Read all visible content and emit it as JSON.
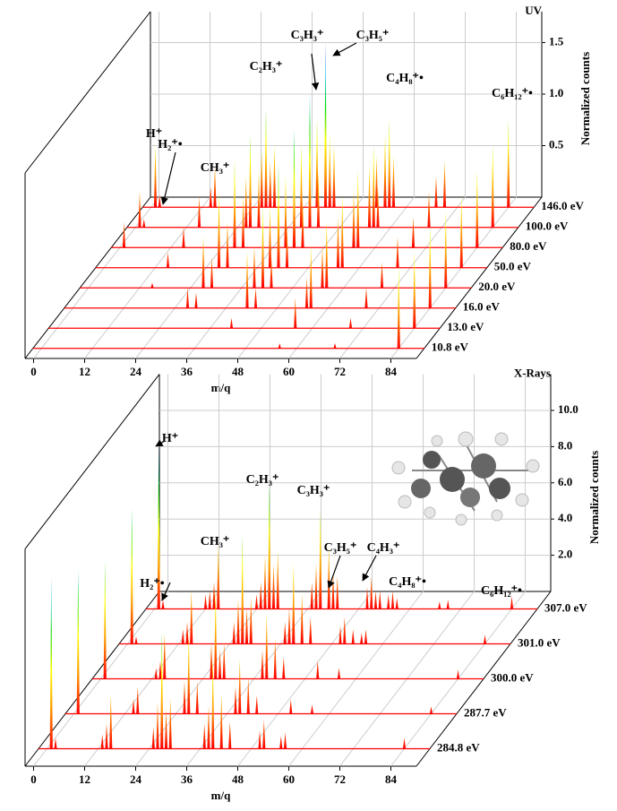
{
  "chart_data": [
    {
      "type": "waterfall",
      "title": "UV",
      "xlabel": "m/q",
      "zlabel": "Normalized counts",
      "xlim": [
        -2,
        90
      ],
      "xticks": [
        0,
        12,
        24,
        36,
        48,
        60,
        72,
        84
      ],
      "zlim": [
        0,
        1.8
      ],
      "zticks": [
        0.5,
        {
          "value": 1,
          "label": "1.0"
        },
        1.5
      ],
      "grid": true,
      "line_color": "#ff0000",
      "colormap": [
        "#ff0000",
        "#ff9900",
        "#ffff00",
        "#00dd00",
        "#00bfff",
        "#0000ff"
      ],
      "series": [
        {
          "name": "146.0 eV",
          "x": [
            1,
            2,
            14,
            15,
            26,
            27,
            28,
            29,
            39,
            41,
            42,
            43,
            53,
            55,
            56,
            57,
            67,
            69,
            84
          ],
          "values": [
            0.6,
            0.12,
            0.2,
            0.4,
            0.55,
            0.95,
            0.45,
            0.6,
            0.85,
            1.6,
            0.7,
            0.6,
            0.5,
            0.7,
            0.85,
            0.5,
            0.3,
            0.45,
            0.85
          ]
        },
        {
          "name": "100.0 eV",
          "x": [
            1,
            2,
            15,
            26,
            27,
            29,
            39,
            41,
            43,
            55,
            56,
            57,
            69,
            84
          ],
          "values": [
            0.35,
            0.08,
            0.3,
            0.5,
            0.9,
            0.55,
            0.8,
            1.3,
            0.55,
            0.6,
            0.8,
            0.4,
            0.35,
            0.8
          ]
        },
        {
          "name": "80.0 eV",
          "x": [
            1,
            15,
            27,
            29,
            39,
            41,
            43,
            55,
            56,
            69,
            84
          ],
          "values": [
            0.25,
            0.2,
            0.85,
            0.5,
            0.7,
            1.15,
            0.45,
            0.55,
            0.75,
            0.3,
            0.75
          ]
        },
        {
          "name": "50.0 eV",
          "x": [
            15,
            27,
            29,
            39,
            41,
            43,
            55,
            56,
            69,
            84
          ],
          "values": [
            0.15,
            0.75,
            0.45,
            0.6,
            1.0,
            0.4,
            0.5,
            0.7,
            0.3,
            0.7
          ]
        },
        {
          "name": "20.0 eV",
          "x": [
            15,
            27,
            29,
            39,
            41,
            43,
            55,
            56,
            69,
            84
          ],
          "values": [
            0.05,
            0.5,
            0.3,
            0.4,
            0.8,
            0.3,
            0.4,
            0.65,
            0.25,
            0.75
          ]
        },
        {
          "name": "16.0 eV",
          "x": [
            27,
            29,
            41,
            43,
            55,
            56,
            69,
            84
          ],
          "values": [
            0.2,
            0.15,
            0.55,
            0.2,
            0.3,
            0.6,
            0.2,
            0.8
          ]
        },
        {
          "name": "13.0 eV",
          "x": [
            41,
            56,
            69,
            84
          ],
          "values": [
            0.1,
            0.3,
            0.1,
            0.75
          ]
        },
        {
          "name": "10.8 eV",
          "x": [
            56,
            69,
            84
          ],
          "values": [
            0.05,
            0.05,
            0.8
          ]
        }
      ],
      "annotations": [
        "H⁺",
        "H₂⁺•",
        "CH₃⁺",
        "C₂H₃⁺",
        "C₃H₃⁺",
        "C₃H₅⁺",
        "C₄H₈⁺•",
        "C₆H₁₂⁺•"
      ]
    },
    {
      "type": "waterfall",
      "title": "X-Rays",
      "xlabel": "m/q",
      "zlabel": "Normalized counts",
      "xlim": [
        -2,
        90
      ],
      "xticks": [
        0,
        12,
        24,
        36,
        48,
        60,
        72,
        84
      ],
      "zlim": [
        0,
        12
      ],
      "zticks": [
        {
          "value": 2,
          "label": "2.0"
        },
        {
          "value": 4,
          "label": "4.0"
        },
        {
          "value": 6,
          "label": "6.0"
        },
        {
          "value": 8,
          "label": "8.0"
        },
        {
          "value": 10,
          "label": "10.0"
        }
      ],
      "grid": true,
      "line_color": "#ff0000",
      "colormap": [
        "#ff0000",
        "#ff9900",
        "#ffff00",
        "#00dd00",
        "#00bfff",
        "#0000ff"
      ],
      "series": [
        {
          "name": "307.0 eV",
          "x": [
            1,
            2,
            12,
            13,
            14,
            15,
            24,
            25,
            26,
            27,
            28,
            29,
            37,
            38,
            39,
            41,
            42,
            43,
            50,
            51,
            52,
            53,
            55,
            56,
            57,
            67,
            69,
            84
          ],
          "values": [
            9.0,
            0.5,
            0.8,
            1.0,
            1.5,
            3.6,
            0.8,
            1.5,
            3.0,
            7.0,
            2.5,
            3.2,
            1.5,
            2.5,
            5.5,
            3.5,
            2.0,
            1.8,
            1.2,
            1.8,
            1.0,
            1.0,
            0.8,
            1.0,
            0.6,
            0.4,
            0.5,
            0.7
          ]
        },
        {
          "name": "301.0 eV",
          "x": [
            1,
            2,
            13,
            14,
            15,
            25,
            26,
            27,
            28,
            29,
            37,
            38,
            39,
            41,
            43,
            50,
            51,
            53,
            55,
            56,
            84
          ],
          "values": [
            7.5,
            0.4,
            0.8,
            1.2,
            3.0,
            1.2,
            2.5,
            6.0,
            2.0,
            2.6,
            1.2,
            2.0,
            4.5,
            2.8,
            1.5,
            1.0,
            1.5,
            0.8,
            0.6,
            0.8,
            0.5
          ]
        },
        {
          "name": "300.0 eV",
          "x": [
            1,
            13,
            14,
            15,
            26,
            27,
            28,
            29,
            38,
            39,
            41,
            43,
            51,
            56,
            84
          ],
          "values": [
            6.5,
            0.6,
            1.0,
            2.5,
            2.0,
            5.0,
            1.6,
            2.0,
            1.6,
            3.6,
            2.2,
            1.2,
            1.0,
            0.6,
            0.5
          ]
        },
        {
          "name": "287.7 eV",
          "x": [
            1,
            14,
            15,
            26,
            27,
            29,
            38,
            39,
            41,
            43,
            51,
            56,
            84
          ],
          "values": [
            8.0,
            0.8,
            1.5,
            1.8,
            4.5,
            1.8,
            1.5,
            3.0,
            2.0,
            1.0,
            0.8,
            0.5,
            0.4
          ]
        },
        {
          "name": "284.8 eV",
          "x": [
            1,
            2,
            13,
            14,
            15,
            25,
            26,
            27,
            28,
            29,
            37,
            38,
            39,
            41,
            43,
            50,
            51,
            55,
            56,
            84
          ],
          "values": [
            9.5,
            0.6,
            0.8,
            1.4,
            3.0,
            1.2,
            2.6,
            6.5,
            2.2,
            2.8,
            1.4,
            2.4,
            5.0,
            3.0,
            1.5,
            1.0,
            1.6,
            0.7,
            0.9,
            0.6
          ]
        }
      ],
      "annotations": [
        "H⁺",
        "H₂⁺•",
        "CH₃⁺",
        "C₂H₃⁺",
        "C₃H₃⁺",
        "C₃H₅⁺",
        "C₄H₃⁺",
        "C₄H₈⁺•",
        "C₆H₁₂⁺•"
      ]
    }
  ]
}
